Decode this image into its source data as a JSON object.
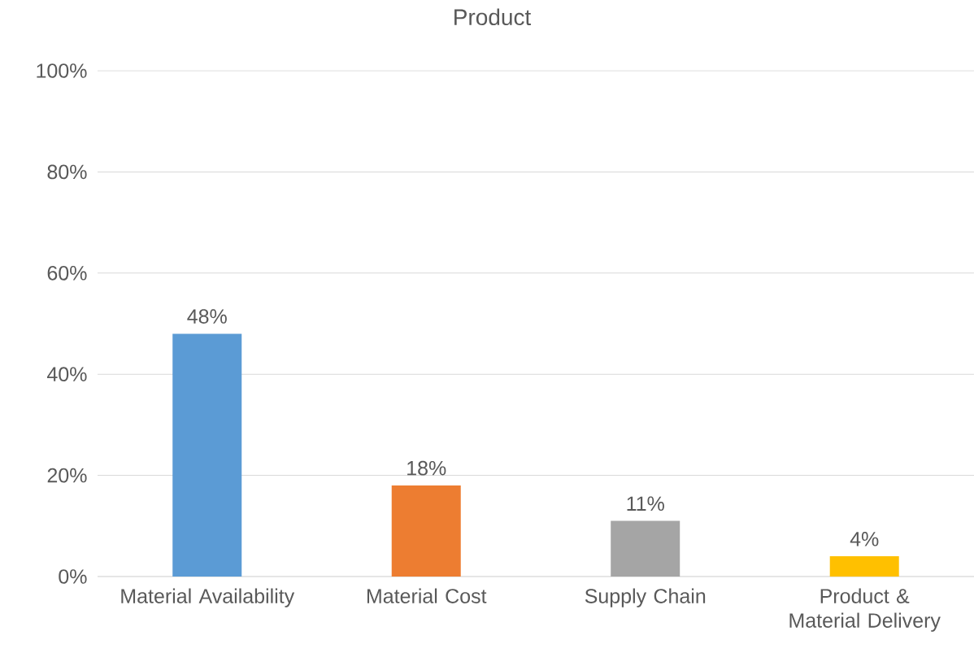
{
  "chart_data": {
    "type": "bar",
    "title": "Product",
    "categories": [
      "Material Availability",
      "Material Cost",
      "Supply Chain",
      "Product & Material Delivery"
    ],
    "values": [
      48,
      18,
      11,
      4
    ],
    "colors": [
      "#5b9bd5",
      "#ed7d31",
      "#a5a5a5",
      "#ffc000"
    ],
    "value_labels": [
      "48%",
      "18%",
      "11%",
      "4%"
    ],
    "ylim": [
      0,
      100
    ],
    "yticks": [
      {
        "value": 0,
        "label": "0%"
      },
      {
        "value": 20,
        "label": "20%"
      },
      {
        "value": 40,
        "label": "40%"
      },
      {
        "value": 60,
        "label": "60%"
      },
      {
        "value": 80,
        "label": "80%"
      },
      {
        "value": 100,
        "label": "100%"
      }
    ],
    "grid": "y"
  }
}
